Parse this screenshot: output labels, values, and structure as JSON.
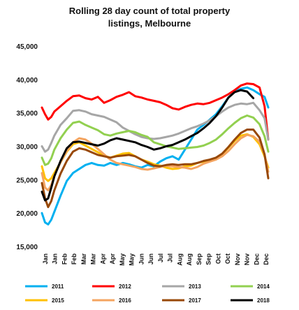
{
  "chart_data": {
    "type": "line",
    "title_lines": [
      "Rolling 28 day count of total property",
      "listings, Melbourne"
    ],
    "ylim": [
      15000,
      45000
    ],
    "yticks": [
      15000,
      20000,
      25000,
      30000,
      35000,
      40000,
      45000
    ],
    "ytick_labels": [
      "15,000",
      "20,000",
      "25,000",
      "30,000",
      "35,000",
      "40,000",
      "45,000"
    ],
    "xlim": [
      0,
      364
    ],
    "x_tick_labels": [
      "Jan",
      "Jan",
      "Feb",
      "Feb",
      "Mar",
      "Mar",
      "Apr",
      "Apr",
      "May",
      "May",
      "Jun",
      "Jun",
      "Jul",
      "Jul",
      "Aug",
      "Aug",
      "Sep",
      "Sep",
      "Oct",
      "Oct",
      "Nov",
      "Nov",
      "Dec",
      "Dec"
    ],
    "grid": false,
    "legend_position": "bottom",
    "series": [
      {
        "name": "2011",
        "color": "#00b0f0",
        "x": [
          0,
          5,
          10,
          15,
          20,
          30,
          40,
          50,
          60,
          70,
          80,
          90,
          100,
          110,
          120,
          130,
          140,
          150,
          160,
          170,
          180,
          190,
          200,
          210,
          220,
          230,
          240,
          250,
          260,
          270,
          280,
          290,
          300,
          310,
          320,
          330,
          340,
          350,
          358,
          364
        ],
        "y": [
          20000,
          18600,
          18300,
          19000,
          20200,
          22600,
          24800,
          26000,
          26600,
          27200,
          27500,
          27200,
          27100,
          27500,
          27200,
          27500,
          27300,
          27000,
          26800,
          27200,
          27000,
          27700,
          28200,
          28500,
          28000,
          29500,
          31000,
          32500,
          33200,
          34000,
          34800,
          36000,
          37300,
          38200,
          38600,
          38800,
          38400,
          37800,
          37400,
          35800
        ]
      },
      {
        "name": "2012",
        "color": "#ff0000",
        "x": [
          0,
          5,
          10,
          15,
          20,
          30,
          40,
          50,
          60,
          70,
          80,
          90,
          100,
          110,
          120,
          130,
          140,
          150,
          160,
          170,
          180,
          190,
          200,
          210,
          220,
          230,
          240,
          250,
          260,
          270,
          280,
          290,
          300,
          310,
          320,
          330,
          340,
          350,
          358,
          364
        ],
        "y": [
          35800,
          34800,
          34000,
          34400,
          35200,
          36000,
          36800,
          37500,
          37600,
          37200,
          37000,
          37400,
          36500,
          36900,
          37400,
          37700,
          38100,
          37500,
          37300,
          37000,
          36800,
          36600,
          36200,
          35700,
          35500,
          35900,
          36200,
          36400,
          36300,
          36500,
          36900,
          37300,
          37800,
          38400,
          39100,
          39400,
          39300,
          38800,
          36000,
          31000
        ]
      },
      {
        "name": "2013",
        "color": "#a6a6a6",
        "x": [
          0,
          5,
          10,
          15,
          20,
          30,
          40,
          50,
          60,
          70,
          80,
          90,
          100,
          110,
          120,
          130,
          140,
          150,
          160,
          170,
          180,
          190,
          200,
          210,
          220,
          230,
          240,
          250,
          260,
          270,
          280,
          290,
          300,
          310,
          320,
          330,
          340,
          350,
          358,
          364
        ],
        "y": [
          30000,
          29200,
          29500,
          30500,
          31600,
          33200,
          34200,
          35300,
          35400,
          35200,
          34800,
          34600,
          34400,
          34000,
          33600,
          32800,
          32300,
          31800,
          31400,
          31200,
          31100,
          31200,
          31400,
          31600,
          31900,
          32300,
          32700,
          33000,
          33400,
          33900,
          34500,
          35200,
          35800,
          36200,
          36400,
          36300,
          36500,
          35400,
          34200,
          31000
        ]
      },
      {
        "name": "2014",
        "color": "#92d050",
        "x": [
          0,
          5,
          10,
          15,
          20,
          30,
          40,
          50,
          60,
          70,
          80,
          90,
          100,
          110,
          120,
          130,
          140,
          150,
          160,
          170,
          180,
          190,
          200,
          210,
          220,
          230,
          240,
          250,
          260,
          270,
          280,
          290,
          300,
          310,
          320,
          330,
          340,
          350,
          358,
          364
        ],
        "y": [
          28300,
          27200,
          27400,
          28200,
          29500,
          31200,
          32500,
          33500,
          33700,
          33200,
          32800,
          32400,
          31800,
          31600,
          31900,
          32100,
          32300,
          32100,
          31700,
          31400,
          30600,
          30300,
          30000,
          29800,
          29600,
          29700,
          29800,
          29900,
          30100,
          30500,
          31000,
          31800,
          32700,
          33500,
          34200,
          34600,
          34300,
          33300,
          31500,
          29200
        ]
      },
      {
        "name": "2015",
        "color": "#ffc000",
        "x": [
          0,
          5,
          10,
          15,
          20,
          30,
          40,
          50,
          60,
          70,
          80,
          90,
          100,
          110,
          120,
          130,
          140,
          150,
          160,
          170,
          180,
          190,
          200,
          210,
          220,
          230,
          240,
          250,
          260,
          270,
          280,
          290,
          300,
          310,
          320,
          330,
          340,
          350,
          358,
          364
        ],
        "y": [
          27000,
          25200,
          24800,
          25200,
          26000,
          27600,
          29200,
          30300,
          30600,
          30100,
          29600,
          29100,
          28600,
          28300,
          28600,
          28900,
          29000,
          28500,
          28000,
          27700,
          27300,
          27100,
          26800,
          26600,
          26700,
          27000,
          27100,
          27500,
          27700,
          27800,
          28100,
          28800,
          29800,
          30800,
          31600,
          31800,
          31400,
          30300,
          28500,
          26800
        ]
      },
      {
        "name": "2016",
        "color": "#f4a460",
        "x": [
          0,
          5,
          10,
          15,
          20,
          30,
          40,
          50,
          60,
          70,
          80,
          90,
          100,
          110,
          120,
          130,
          140,
          150,
          160,
          170,
          180,
          190,
          200,
          210,
          220,
          230,
          240,
          250,
          260,
          270,
          280,
          290,
          300,
          310,
          320,
          330,
          340,
          350,
          358,
          364
        ],
        "y": [
          26000,
          23800,
          23400,
          24200,
          25600,
          27600,
          29300,
          30600,
          31200,
          31000,
          30400,
          29600,
          28800,
          28000,
          27500,
          27300,
          27100,
          26900,
          26600,
          26500,
          26700,
          26900,
          27100,
          27000,
          26900,
          26800,
          26600,
          26900,
          27400,
          27700,
          28000,
          28500,
          29300,
          30300,
          31200,
          31700,
          31500,
          30700,
          28800,
          26200
        ]
      },
      {
        "name": "2017",
        "color": "#984807",
        "x": [
          0,
          5,
          10,
          15,
          20,
          30,
          40,
          50,
          60,
          70,
          80,
          90,
          100,
          110,
          120,
          130,
          140,
          150,
          160,
          170,
          180,
          190,
          200,
          210,
          220,
          230,
          240,
          250,
          260,
          270,
          280,
          290,
          300,
          310,
          320,
          330,
          340,
          350,
          358,
          364
        ],
        "y": [
          24500,
          22200,
          20900,
          21800,
          23400,
          25900,
          27800,
          29200,
          29700,
          29500,
          29100,
          28700,
          28500,
          28300,
          28500,
          28600,
          28700,
          28500,
          28000,
          27500,
          27100,
          27000,
          27200,
          27300,
          27200,
          27300,
          27300,
          27500,
          27800,
          28000,
          28300,
          28900,
          29900,
          31000,
          32000,
          32500,
          32500,
          31300,
          28800,
          25200
        ]
      },
      {
        "name": "2018",
        "color": "#000000",
        "x": [
          0,
          5,
          10,
          15,
          20,
          30,
          40,
          50,
          60,
          70,
          80,
          90,
          100,
          110,
          120,
          130,
          140,
          150,
          160,
          170,
          180,
          190,
          200,
          210,
          220,
          230,
          240,
          250,
          260,
          270,
          280,
          290,
          300,
          310,
          320,
          330,
          340
        ],
        "y": [
          23200,
          21900,
          22200,
          23800,
          25500,
          27800,
          29700,
          30600,
          30700,
          30500,
          30300,
          30100,
          30400,
          30900,
          31200,
          31000,
          30800,
          30600,
          30200,
          29900,
          29500,
          29700,
          30000,
          30200,
          30600,
          31000,
          31500,
          32000,
          32700,
          33500,
          34500,
          35800,
          37300,
          38100,
          38400,
          38200,
          37200
        ]
      }
    ]
  }
}
